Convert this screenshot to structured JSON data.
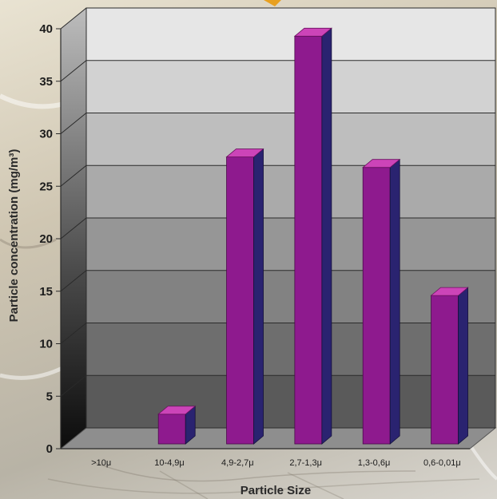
{
  "chart_data": {
    "type": "bar",
    "categories": [
      ">10μ",
      "10-4,9μ",
      "4,9-2,7μ",
      "2,7-1,3μ",
      "1,3-0,6μ",
      "0,6-0,01μ"
    ],
    "values": [
      0,
      2.5,
      27,
      38.5,
      26,
      13.8
    ],
    "xlabel": "Particle Size",
    "ylabel": "Particle concentration (mg/m³)",
    "ylim": [
      0,
      40
    ],
    "yticks": [
      0,
      5,
      10,
      15,
      20,
      25,
      30,
      35,
      40
    ],
    "grid": true,
    "style": "3d",
    "colors": {
      "bar_front": "#8e1a8e",
      "bar_top": "#cc44b8",
      "bar_side": "#2a2370"
    }
  }
}
